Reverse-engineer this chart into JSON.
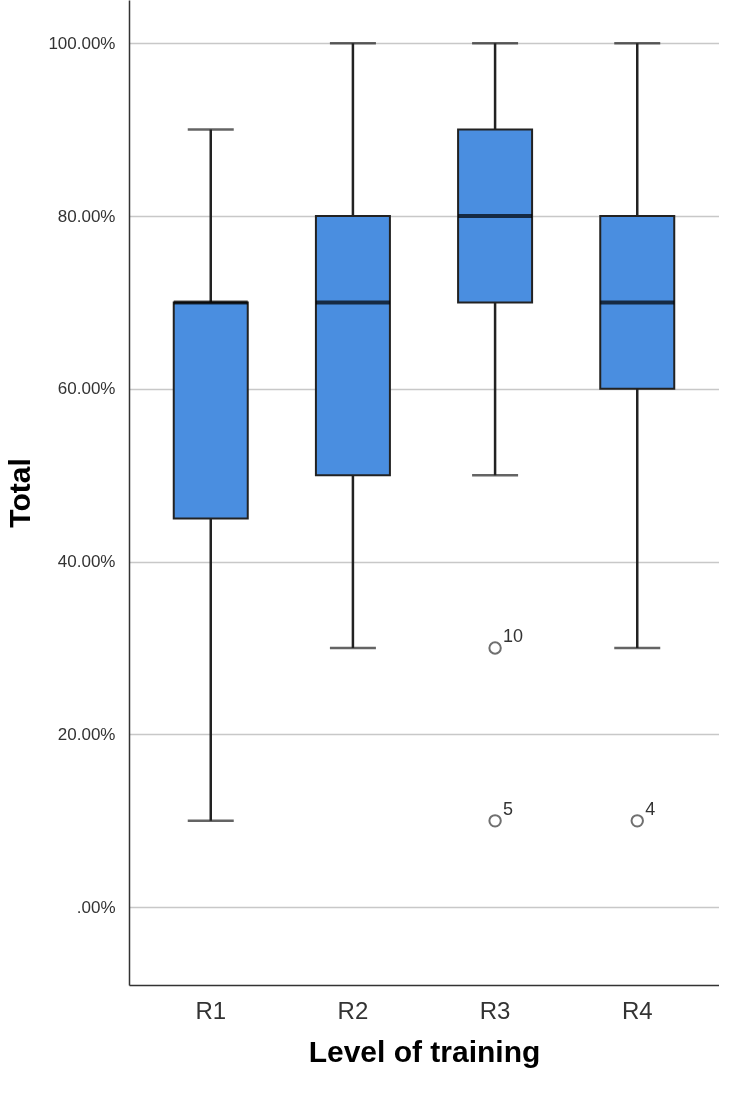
{
  "chart_data": {
    "type": "box",
    "xlabel": "Level of training",
    "ylabel": "Total",
    "categories": [
      "R1",
      "R2",
      "R3",
      "R4"
    ],
    "series": [
      {
        "color": "#4a8ee0",
        "boxes": [
          {
            "low": 10,
            "q1": 45,
            "median": 70,
            "q3": 70,
            "high": 90
          },
          {
            "low": 30,
            "q1": 50,
            "median": 70,
            "q3": 80,
            "high": 100
          },
          {
            "low": 50,
            "q1": 70,
            "median": 80,
            "q3": 90,
            "high": 100,
            "outliers": [
              30,
              10
            ]
          },
          {
            "low": 30,
            "q1": 60,
            "median": 70,
            "q3": 80,
            "high": 100,
            "outliers": [
              10
            ]
          }
        ]
      }
    ],
    "ylim": [
      -9,
      105
    ],
    "yticks": [
      {
        "value": 0,
        "label": ".00%"
      },
      {
        "value": 20,
        "label": "20.00%"
      },
      {
        "value": 40,
        "label": "40.00%"
      },
      {
        "value": 60,
        "label": "60.00%"
      },
      {
        "value": 80,
        "label": "80.00%"
      },
      {
        "value": 100,
        "label": "100.00%"
      }
    ],
    "grid": "y",
    "annotations": [
      "10",
      "5",
      "4"
    ]
  }
}
